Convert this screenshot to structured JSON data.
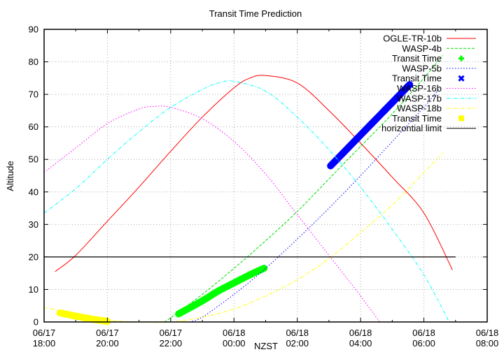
{
  "chart_data": {
    "type": "line",
    "title": "Transit Time Prediction",
    "xlabel": "NZST",
    "ylabel": "Altitude",
    "ylim": [
      0,
      90
    ],
    "xlim_hours": [
      0,
      14
    ],
    "grid": true,
    "legend_position": "top-right inside",
    "yticks": [
      "0",
      "10",
      "20",
      "30",
      "40",
      "50",
      "60",
      "70",
      "80",
      "90"
    ],
    "xticks": [
      {
        "date": "06/17",
        "time": "18:00"
      },
      {
        "date": "06/17",
        "time": "20:00"
      },
      {
        "date": "06/17",
        "time": "22:00"
      },
      {
        "date": "06/18",
        "time": "00:00"
      },
      {
        "date": "06/18",
        "time": "02:00"
      },
      {
        "date": "06/18",
        "time": "04:00"
      },
      {
        "date": "06/18",
        "time": "06:00"
      },
      {
        "date": "06/18",
        "time": "08:00"
      }
    ],
    "series": [
      {
        "name": "OGLE-TR-10b",
        "color": "#ff0000",
        "style": "solid",
        "x_hours": [
          0.35,
          1.0,
          2.0,
          3.0,
          4.0,
          5.0,
          6.0,
          6.5,
          7.0,
          8.0,
          9.0,
          10.0,
          11.0,
          12.0,
          12.9
        ],
        "y": [
          15.5,
          20.5,
          31,
          41.5,
          52.5,
          63,
          72,
          75,
          75.8,
          73.5,
          65,
          55,
          44.5,
          33.5,
          16
        ]
      },
      {
        "name": "WASP-4b",
        "color": "#00dd00",
        "style": "dashed",
        "x_hours": [
          3.8,
          4.0,
          5.0,
          6.0,
          7.0,
          8.0,
          9.0,
          10.0,
          11.0,
          12.0,
          12.6
        ],
        "y": [
          0,
          1.3,
          8.5,
          16.5,
          25,
          34,
          44,
          54,
          64,
          75,
          82
        ]
      },
      {
        "name": "Transit Time (WASP-4b)",
        "color": "#00ff00",
        "style": "points",
        "x_hours": [
          4.25,
          5.0,
          5.5,
          6.0,
          6.5,
          6.95
        ],
        "y": [
          2.5,
          6.5,
          9.5,
          12.0,
          14.5,
          16.5
        ]
      },
      {
        "name": "WASP-5b",
        "color": "#0000ff",
        "style": "dotted",
        "x_hours": [
          4.6,
          5.0,
          6.0,
          7.0,
          8.0,
          9.0,
          10.0,
          11.0,
          12.0,
          12.5
        ],
        "y": [
          0,
          1.5,
          8.5,
          16.5,
          25.5,
          35,
          45,
          55.5,
          66,
          72
        ]
      },
      {
        "name": "Transit Time (WASP-5b)",
        "color": "#0000ff",
        "style": "points",
        "x_hours": [
          9.05,
          9.5,
          10.0,
          10.5,
          11.0,
          11.55
        ],
        "y": [
          48,
          52.5,
          57.5,
          62.5,
          67.5,
          73
        ]
      },
      {
        "name": "WASP-16b",
        "color": "#ff00ff",
        "style": "dotted",
        "x_hours": [
          0.0,
          1.0,
          2.0,
          3.0,
          3.5,
          4.0,
          5.0,
          6.0,
          7.0,
          8.0,
          9.0,
          10.0,
          10.6
        ],
        "y": [
          46,
          53.5,
          61,
          65.5,
          66.3,
          66,
          62.5,
          55.5,
          45.5,
          33,
          20.5,
          8,
          0
        ]
      },
      {
        "name": "WASP-17b",
        "color": "#00ffff",
        "style": "dash-dot",
        "x_hours": [
          0.0,
          1.0,
          2.0,
          3.0,
          4.0,
          5.0,
          5.5,
          6.0,
          7.0,
          8.0,
          9.0,
          10.0,
          11.0,
          12.0,
          12.8
        ],
        "y": [
          33.5,
          41,
          50,
          58.5,
          66,
          71.5,
          73.5,
          74,
          71,
          63,
          53,
          41.5,
          28.5,
          14.5,
          0
        ]
      },
      {
        "name": "WASP-18b",
        "color": "#ffff00",
        "style": "dash-dot",
        "x_hours": [
          0.0,
          0.5,
          1.0,
          1.5,
          2.0,
          3.0,
          4.0,
          5.0,
          6.0,
          7.0,
          8.0,
          9.0,
          10.0,
          11.0,
          12.0,
          12.6
        ],
        "y": [
          4.5,
          3.5,
          2.5,
          1.3,
          0.5,
          0,
          0,
          1.5,
          4,
          8,
          13,
          19.5,
          27.5,
          36,
          46,
          52
        ]
      },
      {
        "name": "Transit Time (WASP-18b)",
        "color": "#ffff00",
        "style": "points",
        "x_hours": [
          0.5,
          1.0,
          1.5,
          2.0
        ],
        "y": [
          2.8,
          1.8,
          0.9,
          0.2
        ]
      },
      {
        "name": "horizontial limit",
        "color": "#000000",
        "style": "solid",
        "x_hours": [
          0.0,
          13.0
        ],
        "y": [
          20,
          20
        ]
      }
    ]
  },
  "legend": [
    {
      "label": "OGLE-TR-10b",
      "color": "#ff0000",
      "kind": "solid"
    },
    {
      "label": "WASP-4b",
      "color": "#00dd00",
      "kind": "dashed"
    },
    {
      "label": "Transit Time",
      "color": "#00ff00",
      "kind": "plus"
    },
    {
      "label": "WASP-5b",
      "color": "#0000ff",
      "kind": "dotted"
    },
    {
      "label": "Transit Time",
      "color": "#0000ff",
      "kind": "cross"
    },
    {
      "label": "WASP-16b",
      "color": "#ff00ff",
      "kind": "dotted"
    },
    {
      "label": "WASP-17b",
      "color": "#00ffff",
      "kind": "dashdot"
    },
    {
      "label": "WASP-18b",
      "color": "#ffff00",
      "kind": "dashdot"
    },
    {
      "label": "Transit Time",
      "color": "#ffff00",
      "kind": "square"
    },
    {
      "label": "horizontial limit",
      "color": "#000000",
      "kind": "solid"
    }
  ]
}
